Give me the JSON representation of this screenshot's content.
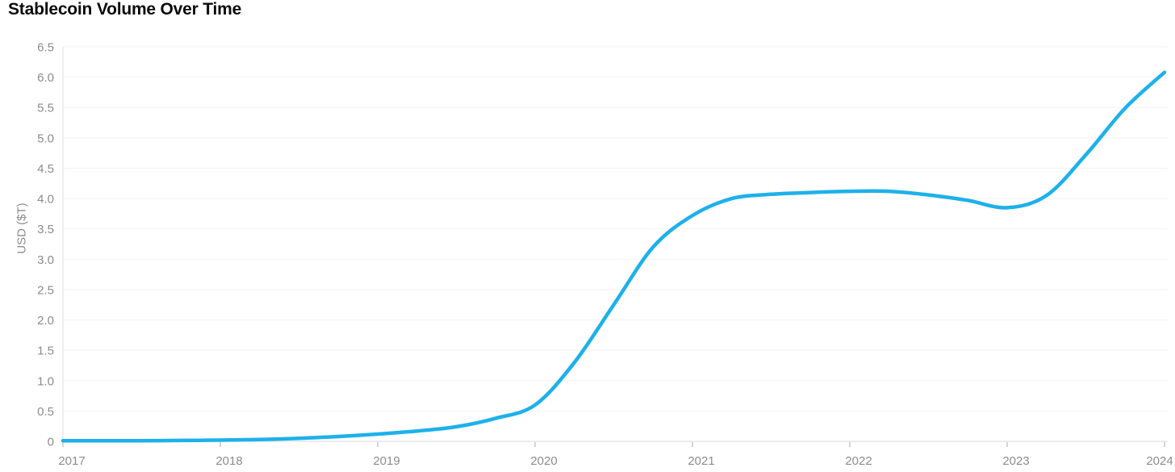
{
  "chart": {
    "title": "Stablecoin Volume Over Time",
    "ylabel": "USD ($T)"
  },
  "chart_data": {
    "type": "line",
    "title": "Stablecoin Volume Over Time",
    "xlabel": "",
    "ylabel": "USD ($T)",
    "legend": "none",
    "grid": "horizontal",
    "xlim": [
      2017,
      2024
    ],
    "ylim": [
      0,
      6.5
    ],
    "x_tick_labels": [
      "2017",
      "2018",
      "2019",
      "2020",
      "2021",
      "2022",
      "2023",
      "2024"
    ],
    "y_ticks": {
      "values": [
        0,
        0.5,
        1.0,
        1.5,
        2.0,
        2.5,
        3.0,
        3.5,
        4.0,
        4.5,
        5.0,
        5.5,
        6.0,
        6.5
      ],
      "labels": [
        "0",
        "0.5",
        "1.0",
        "1.5",
        "2.0",
        "2.5",
        "3.0",
        "3.5",
        "4.0",
        "4.5",
        "5.0",
        "5.5",
        "6.0",
        "6.5"
      ]
    },
    "series": [
      {
        "name": "Stablecoin Volume",
        "color": "#1db1ea",
        "x": [
          2017,
          2017.25,
          2017.5,
          2017.75,
          2018,
          2018.25,
          2018.5,
          2018.75,
          2019,
          2019.25,
          2019.5,
          2019.75,
          2020,
          2020.25,
          2020.5,
          2020.75,
          2021,
          2021.25,
          2021.5,
          2021.75,
          2022,
          2022.25,
          2022.5,
          2022.75,
          2023,
          2023.25,
          2023.5,
          2023.75,
          2024
        ],
        "values": [
          0.01,
          0.01,
          0.01,
          0.015,
          0.02,
          0.03,
          0.05,
          0.08,
          0.12,
          0.17,
          0.24,
          0.38,
          0.6,
          1.3,
          2.25,
          3.2,
          3.72,
          4.0,
          4.07,
          4.1,
          4.12,
          4.12,
          4.06,
          3.97,
          3.85,
          4.05,
          4.72,
          5.49,
          6.08
        ]
      }
    ],
    "colors": {
      "background": "#ffffff",
      "line": "#1db1ea",
      "grid": "#f2f2f2",
      "baseline": "#e0e0e0",
      "left_axis": "#dedede",
      "tick_mark": "#a8a8a8",
      "tick_label": "#8c8c8c",
      "title": "#0b0b0b"
    }
  }
}
